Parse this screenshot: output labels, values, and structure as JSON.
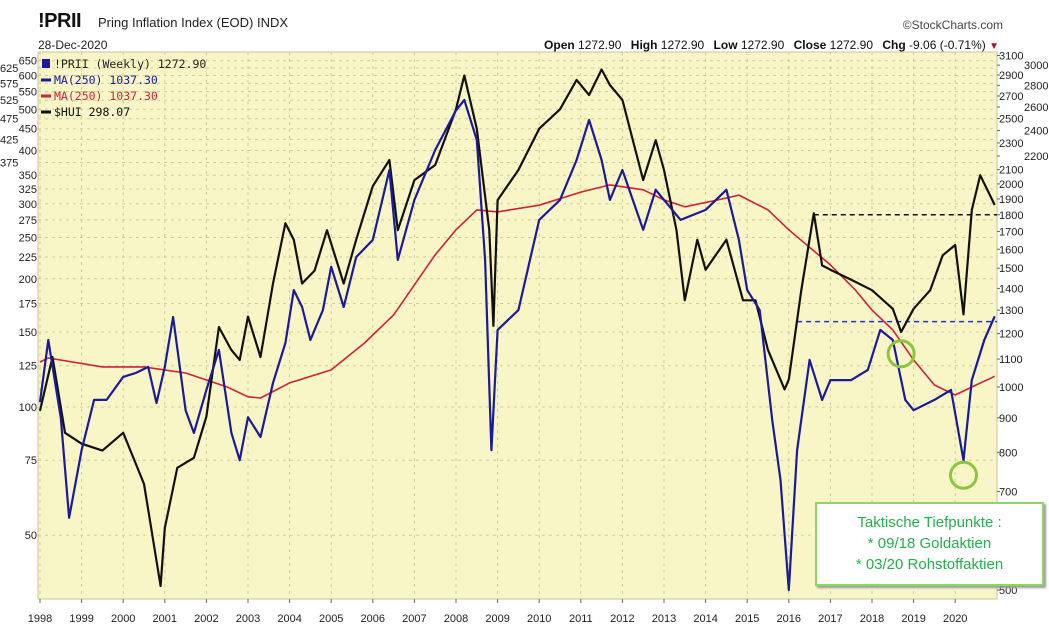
{
  "header": {
    "symbol": "!PRII",
    "description": "Pring Inflation Index (EOD)  INDX",
    "date": "28-Dec-2020",
    "brand": "©StockCharts.com",
    "open_label": "Open",
    "open": "1272.90",
    "high_label": "High",
    "high": "1272.90",
    "low_label": "Low",
    "low": "1272.90",
    "close_label": "Close",
    "close": "1272.90",
    "chg_label": "Chg",
    "chg": "-9.06 (-0.71%)"
  },
  "legend": [
    {
      "text": "!PRII (Weekly) 1272.90",
      "color": "#1a1a9a"
    },
    {
      "text": "MA(250) 1037.30",
      "color": "#1a1a9a"
    },
    {
      "text": "MA(250) 1037.30",
      "color": "#d0203a"
    },
    {
      "text": "$HUI 298.07",
      "color": "#111111"
    }
  ],
  "annotation": {
    "lines": [
      "Taktische Tiefpunkte :",
      "* 09/18 Goldaktien",
      "* 03/20 Rohstoffaktien"
    ],
    "color": "#22b24c"
  },
  "chart_data": {
    "type": "line",
    "title": "!PRII Pring Inflation Index (EOD) INDX",
    "xlabel": "",
    "ylabel_left": "$HUI",
    "ylabel_right": "!PRII",
    "x_range": [
      1998.0,
      2021.0
    ],
    "ylim_left": [
      35.6,
      680
    ],
    "ylim_right": [
      495,
      3250
    ],
    "scale": "log",
    "x_ticks": [
      "1998",
      "1999",
      "2000",
      "2001",
      "2002",
      "2003",
      "2004",
      "2005",
      "2006",
      "2007",
      "2008",
      "2009",
      "2010",
      "2011",
      "2012",
      "2013",
      "2014",
      "2015",
      "2016",
      "2017",
      "2018",
      "2019",
      "2020"
    ],
    "left_ticks": [
      50,
      75,
      100,
      125,
      150,
      175,
      200,
      225,
      250,
      275,
      300,
      325,
      350,
      375,
      400,
      425,
      450,
      475,
      500,
      525,
      550,
      575,
      600,
      625,
      650
    ],
    "right_ticks": [
      500,
      700,
      800,
      900,
      1000,
      1100,
      1200,
      1300,
      1400,
      1500,
      1600,
      1700,
      1800,
      1900,
      2000,
      2100,
      2200,
      2300,
      2400,
      2500,
      2600,
      2700,
      2800,
      2900,
      3000,
      3100
    ],
    "grid": true,
    "legend_position": "top-left",
    "series": [
      {
        "name": "!PRII (Weekly)",
        "axis": "right",
        "color": "#1a1a9a",
        "x": [
          1998.0,
          1998.2,
          1998.5,
          1998.7,
          1999.0,
          1999.3,
          1999.6,
          2000.0,
          2000.3,
          2000.6,
          2000.8,
          2001.0,
          2001.2,
          2001.5,
          2001.7,
          2002.0,
          2002.3,
          2002.6,
          2002.8,
          2003.0,
          2003.3,
          2003.6,
          2003.9,
          2004.1,
          2004.3,
          2004.5,
          2004.8,
          2005.0,
          2005.3,
          2005.6,
          2006.0,
          2006.4,
          2006.6,
          2007.0,
          2007.5,
          2008.0,
          2008.2,
          2008.5,
          2008.7,
          2008.85,
          2009.0,
          2009.5,
          2010.0,
          2010.5,
          2010.9,
          2011.2,
          2011.5,
          2011.7,
          2012.0,
          2012.5,
          2012.8,
          2013.0,
          2013.4,
          2014.0,
          2014.5,
          2014.8,
          2015.0,
          2015.3,
          2015.6,
          2015.8,
          2016.0,
          2016.2,
          2016.5,
          2016.8,
          2017.0,
          2017.5,
          2017.9,
          2018.2,
          2018.5,
          2018.8,
          2019.0,
          2019.5,
          2019.9,
          2020.2,
          2020.4,
          2020.7,
          2020.95
        ],
        "y": [
          950,
          1174,
          900,
          640,
          806,
          957,
          957,
          1035,
          1049,
          1071,
          947,
          1071,
          1270,
          924,
          855,
          990,
          1135,
          855,
          779,
          902,
          843,
          1014,
          1162,
          1392,
          1314,
          1174,
          1300,
          1507,
          1314,
          1558,
          1652,
          2097,
          1543,
          1894,
          2245,
          2570,
          2664,
          2324,
          1543,
          806,
          1215,
          1300,
          1769,
          1894,
          2170,
          2488,
          2170,
          1894,
          2097,
          1710,
          1960,
          1894,
          1769,
          1830,
          1960,
          1652,
          1392,
          1300,
          894,
          728,
          500,
          806,
          1097,
          957,
          1024,
          1024,
          1060,
          1215,
          1174,
          957,
          924,
          957,
          990,
          779,
          1024,
          1174,
          1272.9
        ]
      },
      {
        "name": "MA(250)",
        "axis": "right",
        "color": "#d0203a",
        "x": [
          1998.0,
          1998.2,
          1999.5,
          2000.5,
          2001.5,
          2002.5,
          2003.0,
          2003.3,
          2004.0,
          2005.0,
          2005.8,
          2006.5,
          2007.5,
          2008.0,
          2008.5,
          2009.0,
          2010.0,
          2011.0,
          2011.7,
          2012.5,
          2013.0,
          2013.5,
          2014.3,
          2014.8,
          2015.5,
          2016.0,
          2017.0,
          2017.6,
          2018.0,
          2018.5,
          2019.0,
          2019.5,
          2020.0,
          2020.5,
          2020.95
        ],
        "y": [
          1089,
          1104,
          1071,
          1071,
          1049,
          1000,
          967,
          963,
          1014,
          1060,
          1162,
          1279,
          1570,
          1710,
          1830,
          1818,
          1860,
          1945,
          1993,
          1960,
          1894,
          1850,
          1894,
          1925,
          1830,
          1710,
          1517,
          1392,
          1300,
          1215,
          1097,
          1007,
          973,
          1007,
          1037.3
        ]
      },
      {
        "name": "$HUI",
        "axis": "left",
        "color": "#111111",
        "x": [
          1998.0,
          1998.3,
          1998.6,
          1999.0,
          1999.5,
          2000.0,
          2000.5,
          2000.9,
          2001.0,
          2001.3,
          2001.7,
          2002.0,
          2002.3,
          2002.6,
          2002.8,
          2003.0,
          2003.3,
          2003.6,
          2003.9,
          2004.1,
          2004.3,
          2004.6,
          2004.9,
          2005.1,
          2005.3,
          2005.6,
          2006.0,
          2006.4,
          2006.6,
          2007.0,
          2007.5,
          2008.0,
          2008.2,
          2008.5,
          2008.8,
          2008.9,
          2009.0,
          2009.5,
          2010.0,
          2010.5,
          2010.9,
          2011.2,
          2011.5,
          2011.7,
          2012.0,
          2012.5,
          2012.8,
          2013.0,
          2013.3,
          2013.5,
          2013.8,
          2014.0,
          2014.5,
          2014.9,
          2015.2,
          2015.5,
          2015.9,
          2016.0,
          2016.3,
          2016.6,
          2016.8,
          2017.0,
          2017.5,
          2018.0,
          2018.5,
          2018.7,
          2019.0,
          2019.4,
          2019.7,
          2020.0,
          2020.2,
          2020.4,
          2020.6,
          2020.95
        ],
        "y": [
          98,
          131,
          87,
          82,
          79,
          87,
          66,
          38,
          52,
          72,
          76,
          95,
          154,
          136,
          129,
          163,
          131,
          195,
          270,
          247,
          195,
          209,
          260,
          225,
          195,
          247,
          330,
          380,
          260,
          341,
          370,
          500,
          600,
          450,
          260,
          155,
          306,
          360,
          450,
          500,
          586,
          540,
          620,
          570,
          526,
          341,
          423,
          360,
          260,
          178,
          247,
          210,
          247,
          178,
          178,
          136,
          110,
          116,
          188,
          285,
          215,
          210,
          199,
          188,
          170,
          150,
          170,
          188,
          227,
          240,
          165,
          290,
          350,
          298.07
        ]
      }
    ],
    "reference_lines": [
      {
        "axis": "right",
        "value": 1800,
        "style": "dashed",
        "color": "#111111",
        "from": 2016.6
      },
      {
        "axis": "right",
        "value": 1250,
        "style": "dashed",
        "color": "#2233cc",
        "from": 2016.2
      }
    ],
    "markers": [
      {
        "type": "circle",
        "x": 2018.7,
        "axis": "right",
        "value": 1120,
        "color": "#8cc63f"
      },
      {
        "type": "circle",
        "x": 2020.2,
        "axis": "right",
        "value": 740,
        "color": "#8cc63f"
      }
    ]
  }
}
